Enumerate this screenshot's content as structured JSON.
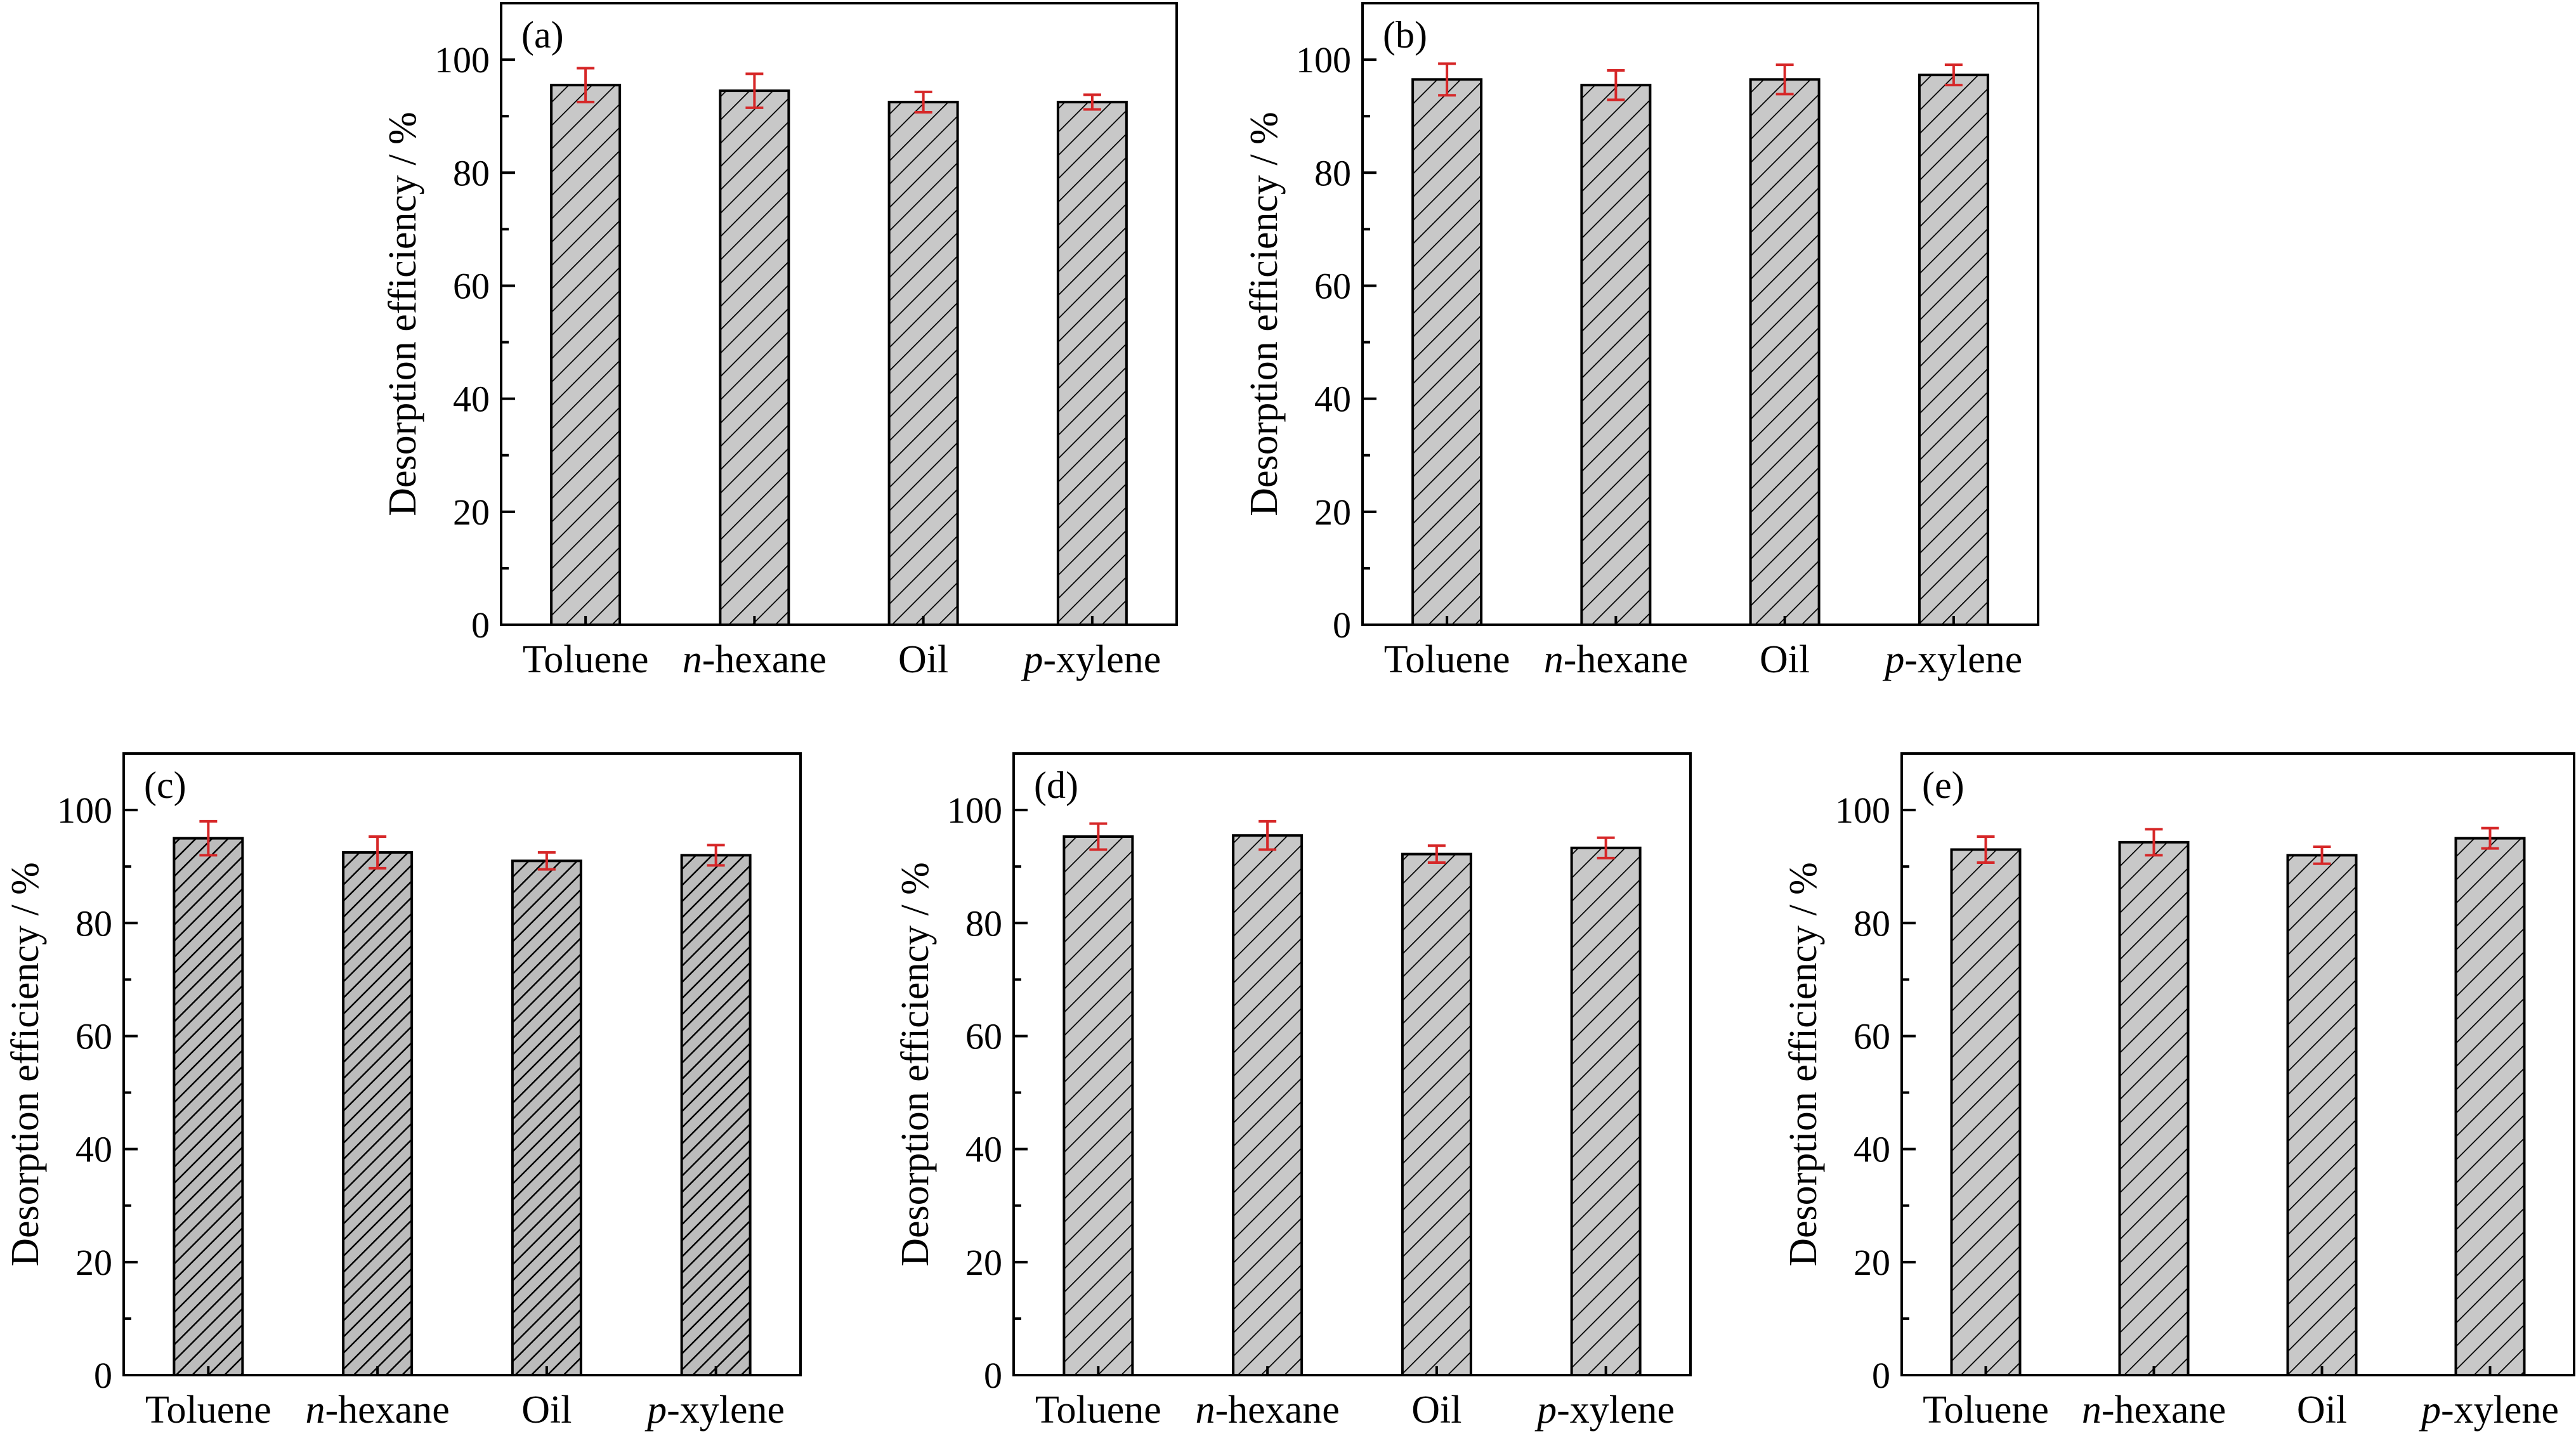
{
  "figure": {
    "panels": [
      "(a)",
      "(b)",
      "(c)",
      "(d)",
      "(e)"
    ]
  },
  "colors": {
    "bar_fill": "#c8c8c8",
    "bar_hatch": "#000000",
    "error_bar": "#d62728"
  },
  "chart_data": [
    {
      "type": "bar",
      "panel_label": "(a)",
      "categories": [
        "Toluene",
        "n-hexane",
        "Oil",
        "p-xylene"
      ],
      "category_parts": [
        [
          "",
          "Toluene"
        ],
        [
          "n",
          "-hexane"
        ],
        [
          "",
          "Oil"
        ],
        [
          "p",
          "-xylene"
        ]
      ],
      "values": [
        95.5,
        94.5,
        92.5,
        92.5
      ],
      "errors": [
        3.0,
        3.0,
        1.8,
        1.3
      ],
      "ylabel": "Desorption efficiency / %",
      "ylim": [
        0,
        110
      ],
      "yticks": [
        0,
        20,
        40,
        60,
        80,
        100
      ],
      "grid": false,
      "pattern": "hatched"
    },
    {
      "type": "bar",
      "panel_label": "(b)",
      "categories": [
        "Toluene",
        "n-hexane",
        "Oil",
        "p-xylene"
      ],
      "category_parts": [
        [
          "",
          "Toluene"
        ],
        [
          "n",
          "-hexane"
        ],
        [
          "",
          "Oil"
        ],
        [
          "p",
          "-xylene"
        ]
      ],
      "values": [
        96.5,
        95.5,
        96.5,
        97.3
      ],
      "errors": [
        2.8,
        2.6,
        2.6,
        1.8
      ],
      "ylabel": "Desorption efficiency / %",
      "ylim": [
        0,
        110
      ],
      "yticks": [
        0,
        20,
        40,
        60,
        80,
        100
      ],
      "grid": false,
      "pattern": "hatched"
    },
    {
      "type": "bar",
      "panel_label": "(c)",
      "categories": [
        "Toluene",
        "n-hexane",
        "Oil",
        "p-xylene"
      ],
      "category_parts": [
        [
          "",
          "Toluene"
        ],
        [
          "n",
          "-hexane"
        ],
        [
          "",
          "Oil"
        ],
        [
          "p",
          "-xylene"
        ]
      ],
      "values": [
        95.0,
        92.5,
        91.0,
        92.0
      ],
      "errors": [
        3.0,
        2.8,
        1.5,
        1.8
      ],
      "ylabel": "Desorption efficiency / %",
      "ylim": [
        0,
        110
      ],
      "yticks": [
        0,
        20,
        40,
        60,
        80,
        100
      ],
      "grid": false,
      "pattern": "dense-hatched"
    },
    {
      "type": "bar",
      "panel_label": "(d)",
      "categories": [
        "Toluene",
        "n-hexane",
        "Oil",
        "p-xylene"
      ],
      "category_parts": [
        [
          "",
          "Toluene"
        ],
        [
          "n",
          "-hexane"
        ],
        [
          "",
          "Oil"
        ],
        [
          "p",
          "-xylene"
        ]
      ],
      "values": [
        95.3,
        95.5,
        92.2,
        93.3
      ],
      "errors": [
        2.3,
        2.5,
        1.5,
        1.8
      ],
      "ylabel": "Desorption efficiency / %",
      "ylim": [
        0,
        110
      ],
      "yticks": [
        0,
        20,
        40,
        60,
        80,
        100
      ],
      "grid": false,
      "pattern": "hatched"
    },
    {
      "type": "bar",
      "panel_label": "(e)",
      "categories": [
        "Toluene",
        "n-hexane",
        "Oil",
        "p-xylene"
      ],
      "category_parts": [
        [
          "",
          "Toluene"
        ],
        [
          "n",
          "-hexane"
        ],
        [
          "",
          "Oil"
        ],
        [
          "p",
          "-xylene"
        ]
      ],
      "values": [
        93.0,
        94.3,
        92.0,
        95.0
      ],
      "errors": [
        2.3,
        2.3,
        1.5,
        1.8
      ],
      "ylabel": "Desorption efficiency / %",
      "ylim": [
        0,
        110
      ],
      "yticks": [
        0,
        20,
        40,
        60,
        80,
        100
      ],
      "grid": false,
      "pattern": "hatched"
    }
  ]
}
